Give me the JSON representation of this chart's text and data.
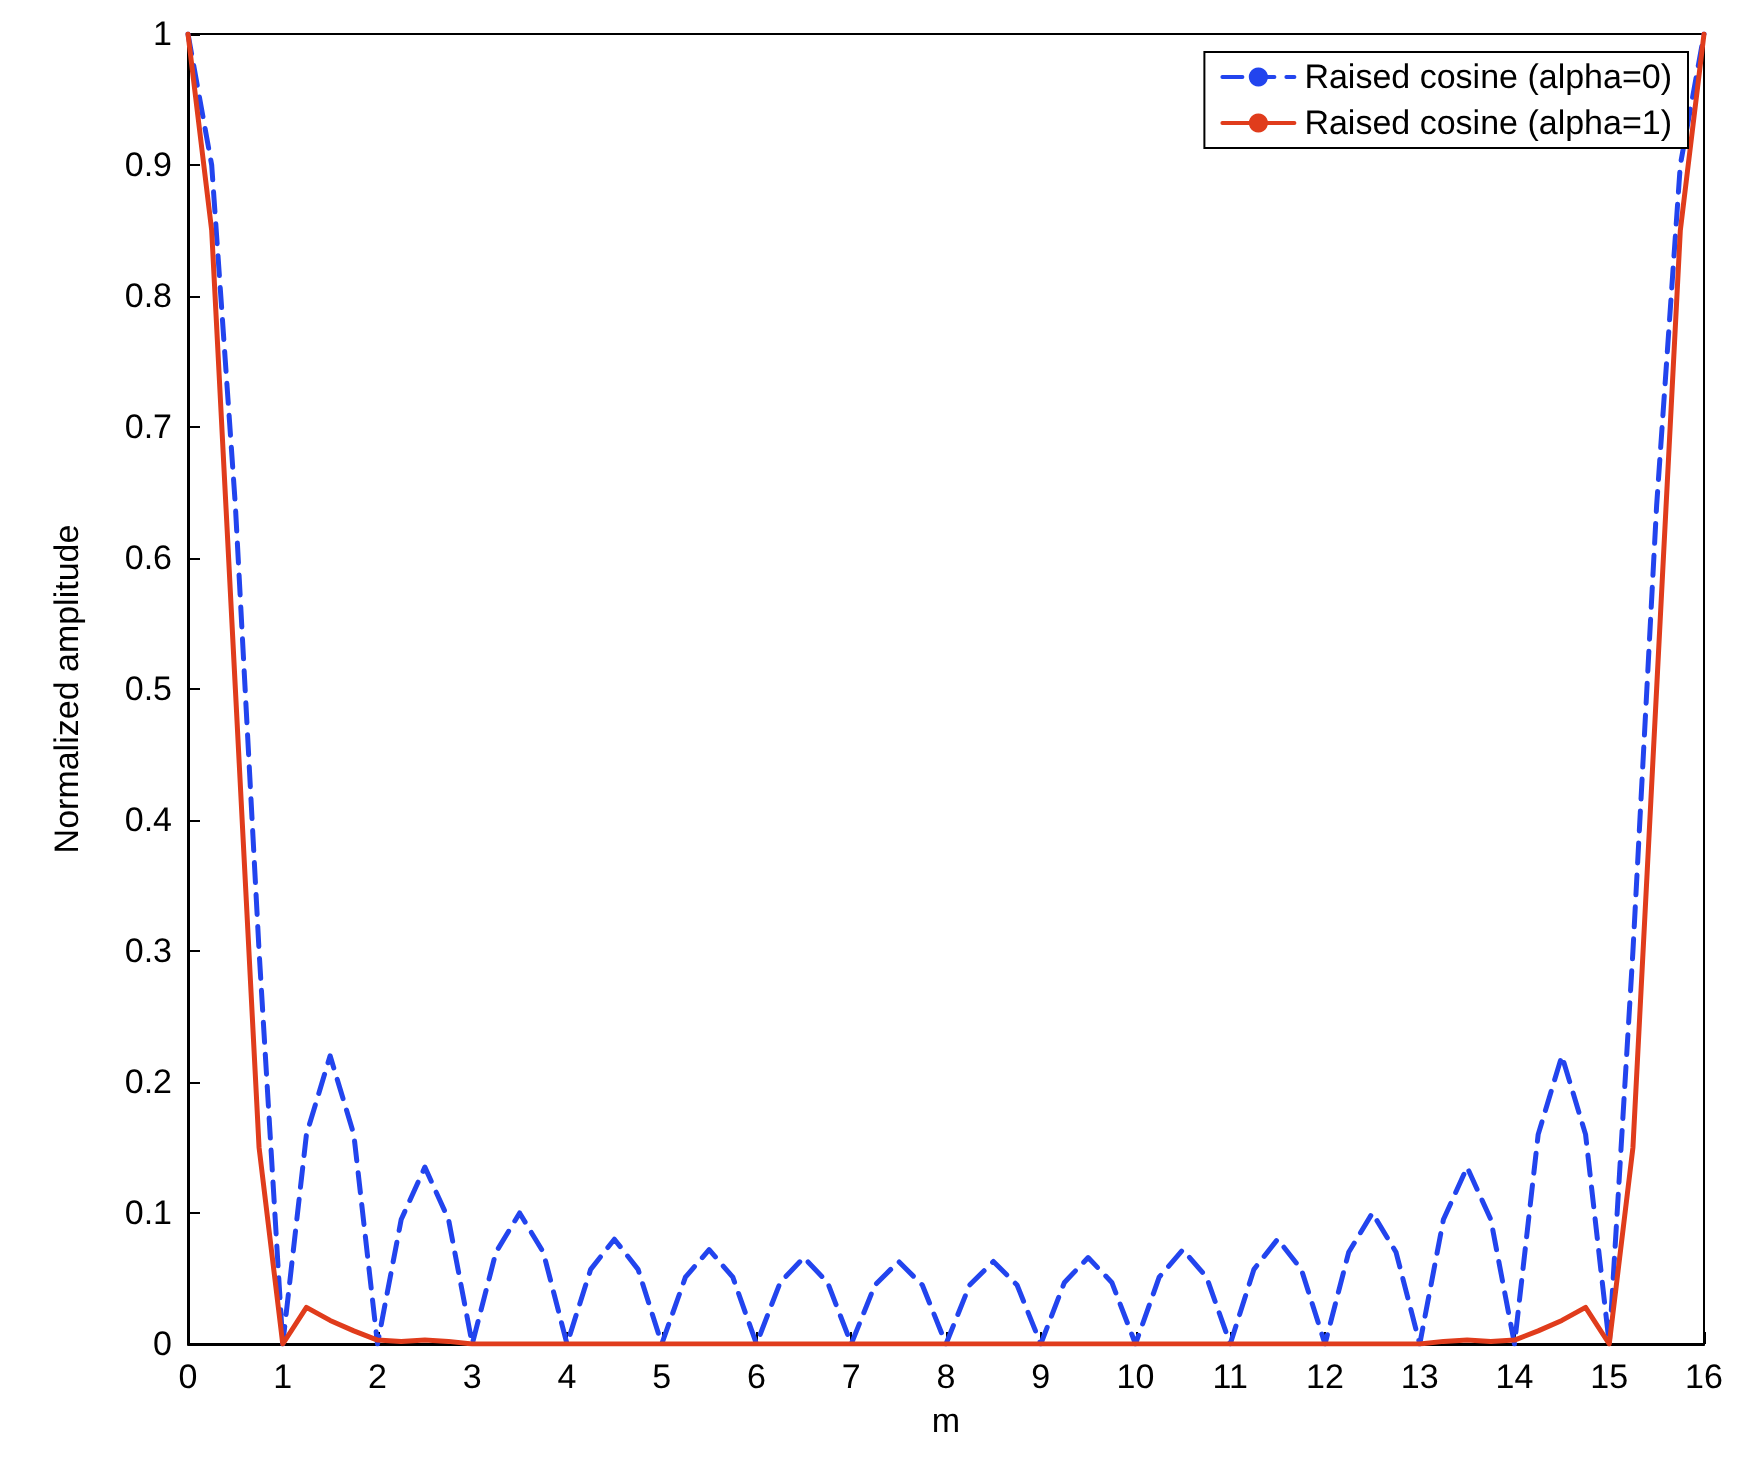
{
  "chart_data": {
    "type": "line",
    "xlabel": "m",
    "ylabel": "Normalized amplitude",
    "x": [
      0,
      0.25,
      0.5,
      0.75,
      1,
      1.25,
      1.5,
      1.75,
      2,
      2.25,
      2.5,
      2.75,
      3,
      3.25,
      3.5,
      3.75,
      4,
      4.25,
      4.5,
      4.75,
      5,
      5.25,
      5.5,
      5.75,
      6,
      6.25,
      6.5,
      6.75,
      7,
      7.25,
      7.5,
      7.75,
      8,
      8.25,
      8.5,
      8.75,
      9,
      9.25,
      9.5,
      9.75,
      10,
      10.25,
      10.5,
      10.75,
      11,
      11.25,
      11.5,
      11.75,
      12,
      12.25,
      12.5,
      12.75,
      13,
      13.25,
      13.5,
      13.75,
      14,
      14.25,
      14.5,
      14.75,
      15,
      15.25,
      15.5,
      15.75,
      16
    ],
    "series": [
      {
        "name": "Raised cosine (alpha=0)",
        "color": "#2244ee",
        "line_style": "dashed",
        "values": [
          1,
          0.9,
          0.64,
          0.3,
          0,
          0.16,
          0.22,
          0.16,
          0,
          0.095,
          0.135,
          0.095,
          0,
          0.07,
          0.1,
          0.07,
          0,
          0.057,
          0.08,
          0.057,
          0,
          0.051,
          0.072,
          0.051,
          0,
          0.047,
          0.066,
          0.047,
          0,
          0.045,
          0.063,
          0.045,
          0,
          0.045,
          0.063,
          0.045,
          0,
          0.047,
          0.066,
          0.047,
          0,
          0.051,
          0.072,
          0.051,
          0,
          0.057,
          0.08,
          0.057,
          0,
          0.07,
          0.1,
          0.07,
          0,
          0.095,
          0.135,
          0.095,
          0,
          0.16,
          0.22,
          0.16,
          0,
          0.3,
          0.64,
          0.9,
          1
        ]
      },
      {
        "name": "Raised cosine (alpha=1)",
        "color": "#e03c1c",
        "line_style": "solid",
        "values": [
          1,
          0.85,
          0.5,
          0.15,
          0,
          0.028,
          0.018,
          0.01,
          0.003,
          0.002,
          0.003,
          0.002,
          0,
          0,
          0,
          0,
          0,
          0,
          0,
          0,
          0,
          0,
          0,
          0,
          0,
          0,
          0,
          0,
          0,
          0,
          0,
          0,
          0,
          0,
          0,
          0,
          0,
          0,
          0,
          0,
          0,
          0,
          0,
          0,
          0,
          0,
          0,
          0,
          0,
          0,
          0,
          0,
          0,
          0.002,
          0.003,
          0.002,
          0.003,
          0.01,
          0.018,
          0.028,
          0,
          0.15,
          0.5,
          0.85,
          1
        ]
      }
    ],
    "xlim": [
      0,
      16
    ],
    "xticks": [
      0,
      1,
      2,
      3,
      4,
      5,
      6,
      7,
      8,
      9,
      10,
      11,
      12,
      13,
      14,
      15,
      16
    ],
    "ylim": [
      0,
      1
    ],
    "yticks": [
      0,
      0.1,
      0.2,
      0.3,
      0.4,
      0.5,
      0.6,
      0.7,
      0.8,
      0.9,
      1
    ],
    "grid": false,
    "legend": "top right",
    "marker": "none"
  }
}
